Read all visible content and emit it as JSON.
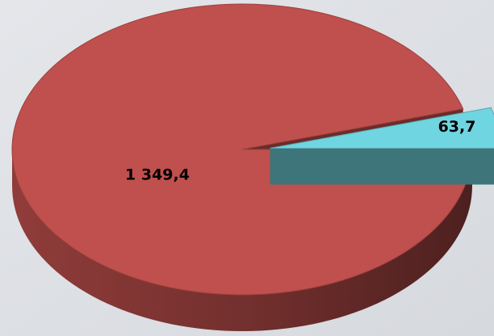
{
  "chart_data": {
    "type": "pie",
    "categories": [
      null,
      null
    ],
    "values": [
      1349.4,
      63.7
    ],
    "value_labels": [
      "1 349,4",
      "63,7"
    ],
    "colors": [
      "#c0504d",
      "#6fd5e0"
    ]
  }
}
